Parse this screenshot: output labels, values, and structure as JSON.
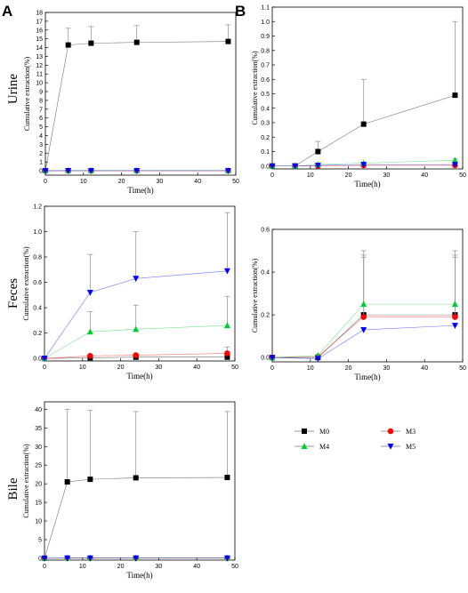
{
  "figure": {
    "panel_labels": [
      "A",
      "B"
    ],
    "row_labels": [
      "Urine",
      "Feces",
      "Bile"
    ]
  },
  "legend": {
    "items": [
      {
        "name": "M0",
        "color": "#000000",
        "marker": "square"
      },
      {
        "name": "M3",
        "color": "#ff0000",
        "marker": "circle"
      },
      {
        "name": "M4",
        "color": "#00cc33",
        "marker": "triangle-up"
      },
      {
        "name": "M5",
        "color": "#0000ff",
        "marker": "triangle-down"
      }
    ]
  },
  "chart_data": [
    {
      "type": "line",
      "panel": "A",
      "row": "Urine",
      "xlabel": "Time(h)",
      "ylabel": "Cumulative extraction(%)",
      "xlim": [
        0,
        50
      ],
      "ylim": [
        -0.5,
        18
      ],
      "xticks": [
        0,
        10,
        20,
        30,
        40,
        50
      ],
      "yticks": [
        0,
        1,
        2,
        3,
        4,
        5,
        6,
        7,
        8,
        9,
        10,
        11,
        12,
        13,
        14,
        15,
        16,
        17,
        18
      ],
      "series": [
        {
          "name": "M0",
          "x": [
            0,
            6,
            12,
            24,
            48
          ],
          "y": [
            0,
            14.3,
            14.5,
            14.6,
            14.7
          ],
          "err": [
            0,
            1.9,
            1.9,
            1.9,
            1.9
          ]
        },
        {
          "name": "M3",
          "x": [
            0,
            6,
            12,
            24,
            48
          ],
          "y": [
            0,
            0,
            0,
            0,
            0
          ],
          "err": [
            0,
            0,
            0,
            0,
            0
          ]
        },
        {
          "name": "M4",
          "x": [
            0,
            6,
            12,
            24,
            48
          ],
          "y": [
            0,
            0.02,
            0.02,
            0.03,
            0.03
          ],
          "err": [
            0,
            0,
            0,
            0,
            0
          ]
        },
        {
          "name": "M5",
          "x": [
            0,
            6,
            12,
            24,
            48
          ],
          "y": [
            0,
            0.01,
            0.01,
            0.01,
            0.01
          ],
          "err": [
            0,
            0,
            0,
            0,
            0
          ]
        }
      ]
    },
    {
      "type": "line",
      "panel": "B",
      "row": "Urine",
      "xlabel": "Time(h)",
      "ylabel": "Cumulative extraction(%)",
      "xlim": [
        0,
        50
      ],
      "ylim": [
        -0.02,
        1.1
      ],
      "xticks": [
        0,
        10,
        20,
        30,
        40,
        50
      ],
      "yticks": [
        0.0,
        0.1,
        0.2,
        0.3,
        0.4,
        0.5,
        0.6,
        0.7,
        0.8,
        0.9,
        1.0,
        1.1
      ],
      "series": [
        {
          "name": "M0",
          "x": [
            0,
            6,
            12,
            24,
            48
          ],
          "y": [
            0,
            0,
            0.1,
            0.29,
            0.49
          ],
          "err": [
            0,
            0,
            0.07,
            0.31,
            0.51
          ]
        },
        {
          "name": "M3",
          "x": [
            0,
            6,
            12,
            24,
            48
          ],
          "y": [
            0,
            0,
            0,
            0.005,
            0.005
          ],
          "err": [
            0,
            0,
            0,
            0,
            0
          ]
        },
        {
          "name": "M4",
          "x": [
            0,
            6,
            12,
            24,
            48
          ],
          "y": [
            0,
            0,
            0.01,
            0.02,
            0.04
          ],
          "err": [
            0,
            0,
            0,
            0,
            0.01
          ]
        },
        {
          "name": "M5",
          "x": [
            0,
            6,
            12,
            24,
            48
          ],
          "y": [
            0,
            0,
            0.005,
            0.01,
            0.01
          ],
          "err": [
            0,
            0,
            0,
            0,
            0
          ]
        }
      ]
    },
    {
      "type": "line",
      "panel": "A",
      "row": "Feces",
      "xlabel": "Time(h)",
      "ylabel": "Cumulative extraction(%)",
      "xlim": [
        0,
        50
      ],
      "ylim": [
        -0.02,
        1.2
      ],
      "xticks": [
        0,
        10,
        20,
        30,
        40,
        50
      ],
      "yticks": [
        0.0,
        0.2,
        0.4,
        0.6,
        0.8,
        1.0,
        1.2
      ],
      "series": [
        {
          "name": "M0",
          "x": [
            0,
            12,
            24,
            48
          ],
          "y": [
            0,
            0.005,
            0.01,
            0.01
          ],
          "err": [
            0,
            0,
            0,
            0
          ]
        },
        {
          "name": "M3",
          "x": [
            0,
            12,
            24,
            48
          ],
          "y": [
            0,
            0.02,
            0.025,
            0.04
          ],
          "err": [
            0,
            0.01,
            0.01,
            0.05
          ]
        },
        {
          "name": "M4",
          "x": [
            0,
            12,
            24,
            48
          ],
          "y": [
            0,
            0.21,
            0.23,
            0.26
          ],
          "err": [
            0,
            0.16,
            0.19,
            0.23
          ]
        },
        {
          "name": "M5",
          "x": [
            0,
            12,
            24,
            48
          ],
          "y": [
            0,
            0.52,
            0.63,
            0.69
          ],
          "err": [
            0,
            0.3,
            0.37,
            0.46
          ]
        }
      ]
    },
    {
      "type": "line",
      "panel": "B",
      "row": "Feces",
      "xlabel": "Time(h)",
      "ylabel": "Cumulative extraction(%)",
      "xlim": [
        0,
        50
      ],
      "ylim": [
        -0.02,
        0.6
      ],
      "xticks": [
        0,
        10,
        20,
        30,
        40,
        50
      ],
      "yticks": [
        0.0,
        0.2,
        0.4,
        0.6
      ],
      "series": [
        {
          "name": "M0",
          "x": [
            0,
            12,
            24,
            48
          ],
          "y": [
            0,
            0,
            0.2,
            0.2
          ],
          "err": [
            0,
            0,
            0.3,
            0.3
          ]
        },
        {
          "name": "M3",
          "x": [
            0,
            12,
            24,
            48
          ],
          "y": [
            0,
            0.005,
            0.19,
            0.19
          ],
          "err": [
            0,
            0,
            0.28,
            0.28
          ]
        },
        {
          "name": "M4",
          "x": [
            0,
            12,
            24,
            48
          ],
          "y": [
            0,
            0.01,
            0.25,
            0.25
          ],
          "err": [
            0,
            0,
            0.23,
            0.23
          ]
        },
        {
          "name": "M5",
          "x": [
            0,
            12,
            24,
            48
          ],
          "y": [
            0,
            -0.005,
            0.13,
            0.15
          ],
          "err": [
            0,
            0,
            0,
            0
          ]
        }
      ]
    },
    {
      "type": "line",
      "panel": "A",
      "row": "Bile",
      "xlabel": "Time(h)",
      "ylabel": "Cumulative extraction(%)",
      "xlim": [
        0,
        50
      ],
      "ylim": [
        -0.5,
        42
      ],
      "xticks": [
        0,
        10,
        20,
        30,
        40,
        50
      ],
      "yticks": [
        0,
        5,
        10,
        15,
        20,
        25,
        30,
        35,
        40
      ],
      "series": [
        {
          "name": "M0",
          "x": [
            0,
            6,
            12,
            24,
            48
          ],
          "y": [
            0,
            20.5,
            21.2,
            21.6,
            21.7
          ],
          "err": [
            0,
            19.5,
            18.5,
            17.8,
            17.7
          ]
        },
        {
          "name": "M3",
          "x": [
            0,
            6,
            12,
            24,
            48
          ],
          "y": [
            0,
            0,
            0,
            0,
            0
          ],
          "err": [
            0,
            0,
            0,
            0,
            0
          ]
        },
        {
          "name": "M4",
          "x": [
            0,
            6,
            12,
            24,
            48
          ],
          "y": [
            0,
            0.1,
            0.1,
            0.1,
            0.1
          ],
          "err": [
            0,
            0,
            0,
            0,
            0
          ]
        },
        {
          "name": "M5",
          "x": [
            0,
            6,
            12,
            24,
            48
          ],
          "y": [
            0,
            0.05,
            0.05,
            0.05,
            0.05
          ],
          "err": [
            0,
            0,
            0,
            0,
            0
          ]
        }
      ]
    }
  ]
}
